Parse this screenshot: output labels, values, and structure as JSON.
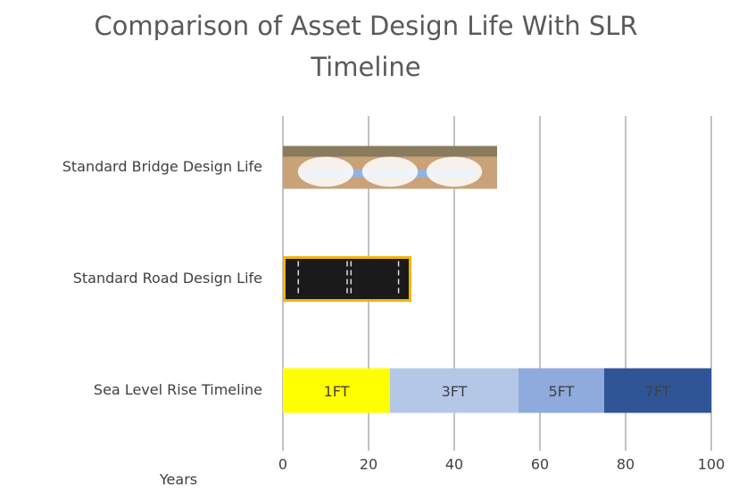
{
  "chart_data": {
    "type": "bar",
    "title": "Comparison of Asset Design Life With SLR Timeline",
    "x_label": "Years",
    "categories": [
      "Standard Bridge Design Life",
      "Standard Road Design Life",
      "Sea Level Rise Timeline"
    ],
    "values": [
      50,
      30,
      null
    ],
    "segments": [
      {
        "name": "1FT",
        "value": 25,
        "color": "#ffff00"
      },
      {
        "name": "3FT",
        "value": 30,
        "color": "#b4c7e7"
      },
      {
        "name": "5FT",
        "value": 20,
        "color": "#8faadc"
      },
      {
        "name": "7FT",
        "value": 25,
        "color": "#2f5597"
      }
    ],
    "xlim": [
      0,
      100
    ],
    "xticks": [
      0,
      20,
      40,
      60,
      80,
      100
    ],
    "grid": true
  }
}
